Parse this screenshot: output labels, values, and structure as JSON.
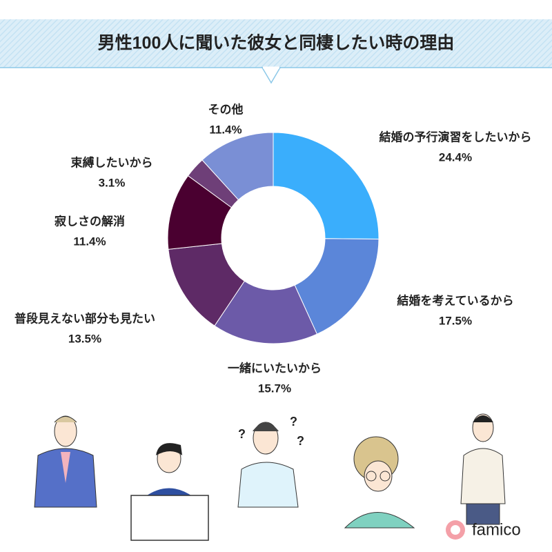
{
  "chart_data": {
    "type": "donut",
    "title": "男性100人に聞いた彼女と同棲したい時の理由",
    "categories": [
      "結婚の予行演習をしたいから",
      "結婚を考えているから",
      "一緒にいたいから",
      "普段見えない部分も見たい",
      "寂しさの解消",
      "束縛したいから",
      "その他"
    ],
    "values": [
      24.4,
      17.5,
      15.7,
      13.5,
      11.4,
      3.1,
      11.4
    ],
    "value_labels": [
      "24.4%",
      "17.5%",
      "15.7%",
      "13.5%",
      "11.4%",
      "3.1%",
      "11.4%"
    ],
    "colors": [
      "#3aaefc",
      "#5b86d9",
      "#6c5aa8",
      "#5e2a66",
      "#4a0030",
      "#6e3f78",
      "#7a8fd5"
    ]
  },
  "brand": "famico"
}
